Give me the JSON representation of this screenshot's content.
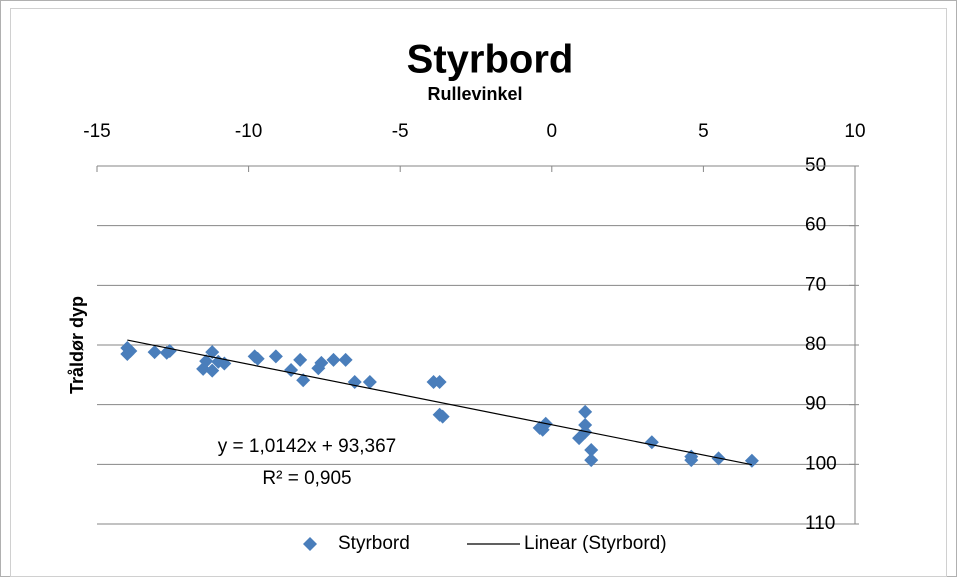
{
  "chart_data": {
    "type": "scatter",
    "title": "Styrbord",
    "xlabel": "Rullevinkel",
    "ylabel": "Tråldør dyp",
    "xlim": [
      -15,
      10
    ],
    "xticks": [
      -15,
      -10,
      -5,
      0,
      5,
      10
    ],
    "ylim": [
      50,
      110
    ],
    "yticks": [
      50,
      60,
      70,
      80,
      90,
      100,
      110
    ],
    "y_reversed": true,
    "grid": true,
    "series": [
      {
        "name": "Styrbord",
        "color": "#4a7ebb",
        "mode": "markers",
        "x": [
          -14,
          -14,
          -13.9,
          -13.1,
          -12.7,
          -12.6,
          -11.5,
          -11.4,
          -11.2,
          -11.2,
          -11,
          -10.8,
          -9.8,
          -9.7,
          -9.1,
          -8.6,
          -8.3,
          -8.2,
          -7.7,
          -7.6,
          -7.2,
          -6.8,
          -6.5,
          -6,
          -3.9,
          -3.7,
          -3.7,
          -3.6,
          -0.4,
          -0.2,
          -0.3,
          0.9,
          1.1,
          1.1,
          1.1,
          1.3,
          1.3,
          3.3,
          4.6,
          4.6,
          5.5,
          6.6
        ],
        "values": [
          80.5,
          81.5,
          81,
          81.2,
          81.3,
          81,
          84,
          82.7,
          81.2,
          84.3,
          82.8,
          83.1,
          81.9,
          82.3,
          81.9,
          84.2,
          82.5,
          85.9,
          83.9,
          83,
          82.5,
          82.5,
          86.2,
          86.2,
          86.2,
          86.2,
          91.7,
          92,
          93.9,
          93.2,
          94.2,
          95.6,
          91.2,
          93.4,
          94.6,
          97.6,
          99.3,
          96.3,
          99.3,
          98.7,
          99,
          99.4
        ]
      },
      {
        "name": "Linear (Styrbord)",
        "color": "#000000",
        "mode": "line",
        "x": [
          -14,
          6.6
        ],
        "values": [
          79.17,
          100.06
        ]
      }
    ],
    "annotations": [
      "y = 1,0142x + 93,367",
      "R² = 0,905"
    ]
  }
}
